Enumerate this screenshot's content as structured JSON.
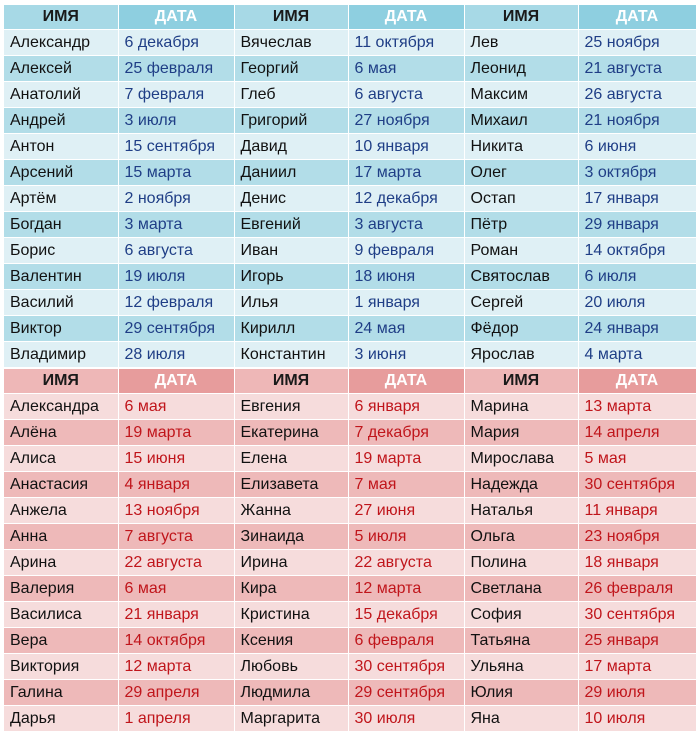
{
  "header": {
    "name_label": "ИМЯ",
    "date_label": "ДАТА"
  },
  "colors": {
    "boys_header_name": "#a7d9e6",
    "boys_header_date": "#8ecfe0",
    "boys_row_light": "#dff0f5",
    "boys_row_dark": "#b2dde8",
    "boys_date_text": "#1f3e86",
    "girls_header_name": "#eeb7b7",
    "girls_header_date": "#e79c9c",
    "girls_row_light": "#f6dcdc",
    "girls_row_dark": "#eeb9b9",
    "girls_date_text": "#c0151b"
  },
  "boys": [
    [
      [
        "Александр",
        "6 декабря"
      ],
      [
        "Вячеслав",
        "11 октября"
      ],
      [
        "Лев",
        "25 ноября"
      ]
    ],
    [
      [
        "Алексей",
        "25 февраля"
      ],
      [
        "Георгий",
        "6 мая"
      ],
      [
        "Леонид",
        "21 августа"
      ]
    ],
    [
      [
        "Анатолий",
        "7 февраля"
      ],
      [
        "Глеб",
        "6 августа"
      ],
      [
        "Максим",
        "26 августа"
      ]
    ],
    [
      [
        "Андрей",
        "3 июля"
      ],
      [
        "Григорий",
        "27 ноября"
      ],
      [
        "Михаил",
        "21 ноября"
      ]
    ],
    [
      [
        "Антон",
        "15 сентября"
      ],
      [
        "Давид",
        "10 января"
      ],
      [
        "Никита",
        "6 июня"
      ]
    ],
    [
      [
        "Арсений",
        "15 марта"
      ],
      [
        "Даниил",
        "17 марта"
      ],
      [
        "Олег",
        "3 октября"
      ]
    ],
    [
      [
        "Артём",
        "2 ноября"
      ],
      [
        "Денис",
        "12 декабря"
      ],
      [
        "Остап",
        "17 января"
      ]
    ],
    [
      [
        "Богдан",
        "3 марта"
      ],
      [
        "Евгений",
        "3 августа"
      ],
      [
        "Пётр",
        "29 января"
      ]
    ],
    [
      [
        "Борис",
        "6 августа"
      ],
      [
        "Иван",
        "9 февраля"
      ],
      [
        "Роман",
        "14 октября"
      ]
    ],
    [
      [
        "Валентин",
        "19 июля"
      ],
      [
        "Игорь",
        "18 июня"
      ],
      [
        "Святослав",
        "6 июля"
      ]
    ],
    [
      [
        "Василий",
        "12 февраля"
      ],
      [
        "Илья",
        "1 января"
      ],
      [
        "Сергей",
        "20 июля"
      ]
    ],
    [
      [
        "Виктор",
        "29 сентября"
      ],
      [
        "Кирилл",
        "24 мая"
      ],
      [
        "Фёдор",
        "24 января"
      ]
    ],
    [
      [
        "Владимир",
        "28 июля"
      ],
      [
        "Константин",
        "3 июня"
      ],
      [
        "Ярослав",
        "4 марта"
      ]
    ]
  ],
  "girls": [
    [
      [
        "Александра",
        "6 мая"
      ],
      [
        "Евгения",
        "6 января"
      ],
      [
        "Марина",
        "13 марта"
      ]
    ],
    [
      [
        "Алёна",
        "19 марта"
      ],
      [
        "Екатерина",
        "7 декабря"
      ],
      [
        "Мария",
        "14 апреля"
      ]
    ],
    [
      [
        "Алиса",
        "15 июня"
      ],
      [
        "Елена",
        "19 марта"
      ],
      [
        "Мирослава",
        "5 мая"
      ]
    ],
    [
      [
        "Анастасия",
        "4 января"
      ],
      [
        "Елизавета",
        "7 мая"
      ],
      [
        "Надежда",
        "30 сентября"
      ]
    ],
    [
      [
        "Анжела",
        "13 ноября"
      ],
      [
        "Жанна",
        "27 июня"
      ],
      [
        "Наталья",
        "11 января"
      ]
    ],
    [
      [
        "Анна",
        "7 августа"
      ],
      [
        "Зинаида",
        "5 июля"
      ],
      [
        "Ольга",
        "23 ноября"
      ]
    ],
    [
      [
        "Арина",
        "22 августа"
      ],
      [
        "Ирина",
        "22 августа"
      ],
      [
        "Полина",
        "18 января"
      ]
    ],
    [
      [
        "Валерия",
        "6 мая"
      ],
      [
        "Кира",
        "12 марта"
      ],
      [
        "Светлана",
        "26 февраля"
      ]
    ],
    [
      [
        "Василиса",
        "21 января"
      ],
      [
        "Кристина",
        "15 декабря"
      ],
      [
        "София",
        "30 сентября"
      ]
    ],
    [
      [
        "Вера",
        "14 октября"
      ],
      [
        "Ксения",
        "6 февраля"
      ],
      [
        "Татьяна",
        "25 января"
      ]
    ],
    [
      [
        "Виктория",
        "12 марта"
      ],
      [
        "Любовь",
        "30 сентября"
      ],
      [
        "Ульяна",
        "17 марта"
      ]
    ],
    [
      [
        "Галина",
        "29 апреля"
      ],
      [
        "Людмила",
        "29 сентября"
      ],
      [
        "Юлия",
        "29 июля"
      ]
    ],
    [
      [
        "Дарья",
        "1 апреля"
      ],
      [
        "Маргарита",
        "30 июля"
      ],
      [
        "Яна",
        "10 июля"
      ]
    ]
  ]
}
